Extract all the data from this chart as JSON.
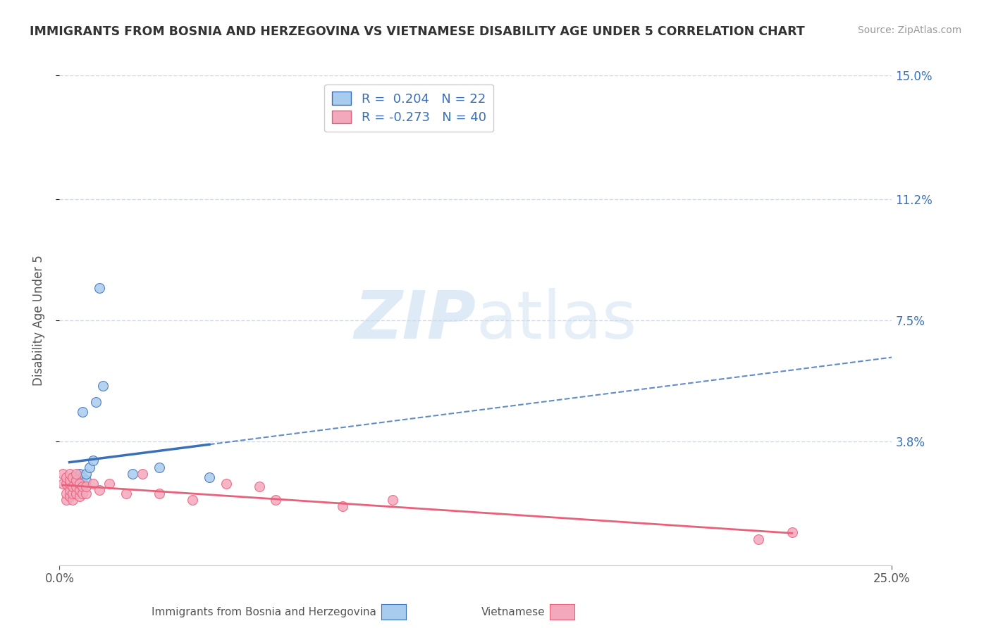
{
  "title": "IMMIGRANTS FROM BOSNIA AND HERZEGOVINA VS VIETNAMESE DISABILITY AGE UNDER 5 CORRELATION CHART",
  "source": "Source: ZipAtlas.com",
  "ylabel": "Disability Age Under 5",
  "xlim": [
    0.0,
    0.25
  ],
  "ylim": [
    0.0,
    0.15
  ],
  "yticks": [
    0.038,
    0.075,
    0.112,
    0.15
  ],
  "ytick_labels": [
    "3.8%",
    "7.5%",
    "11.2%",
    "15.0%"
  ],
  "xtick_labels": [
    "0.0%",
    "25.0%"
  ],
  "xtick_positions": [
    0.0,
    0.25
  ],
  "blue_R": 0.204,
  "blue_N": 22,
  "pink_R": -0.273,
  "pink_N": 40,
  "blue_color": "#A8CCEE",
  "pink_color": "#F4A8BC",
  "blue_line_color": "#3A70B8",
  "pink_line_color": "#E8607A",
  "watermark": "ZIPatlas",
  "watermark_color": "#D0E4F4",
  "background_color": "#FFFFFF",
  "blue_scatter_x": [
    0.003,
    0.004,
    0.004,
    0.005,
    0.005,
    0.005,
    0.006,
    0.006,
    0.006,
    0.007,
    0.007,
    0.007,
    0.008,
    0.008,
    0.009,
    0.01,
    0.011,
    0.012,
    0.013,
    0.022,
    0.03,
    0.045
  ],
  "blue_scatter_y": [
    0.022,
    0.024,
    0.026,
    0.023,
    0.025,
    0.027,
    0.024,
    0.026,
    0.028,
    0.025,
    0.047,
    0.027,
    0.026,
    0.028,
    0.03,
    0.032,
    0.05,
    0.085,
    0.055,
    0.028,
    0.03,
    0.027
  ],
  "pink_scatter_x": [
    0.001,
    0.001,
    0.002,
    0.002,
    0.002,
    0.002,
    0.003,
    0.003,
    0.003,
    0.003,
    0.003,
    0.004,
    0.004,
    0.004,
    0.004,
    0.005,
    0.005,
    0.005,
    0.005,
    0.006,
    0.006,
    0.006,
    0.007,
    0.007,
    0.008,
    0.008,
    0.01,
    0.012,
    0.015,
    0.02,
    0.025,
    0.03,
    0.04,
    0.05,
    0.06,
    0.065,
    0.085,
    0.1,
    0.21,
    0.22
  ],
  "pink_scatter_y": [
    0.025,
    0.028,
    0.02,
    0.022,
    0.025,
    0.027,
    0.021,
    0.023,
    0.025,
    0.026,
    0.028,
    0.02,
    0.022,
    0.024,
    0.027,
    0.022,
    0.024,
    0.026,
    0.028,
    0.021,
    0.023,
    0.025,
    0.022,
    0.024,
    0.022,
    0.024,
    0.025,
    0.023,
    0.025,
    0.022,
    0.028,
    0.022,
    0.02,
    0.025,
    0.024,
    0.02,
    0.018,
    0.02,
    0.008,
    0.01
  ],
  "legend_items": [
    {
      "label": "R =  0.204   N = 22",
      "color": "#A8CCEE",
      "edge": "#3A70B8"
    },
    {
      "label": "R = -0.273   N = 40",
      "color": "#F4A8BC",
      "edge": "#E8607A"
    }
  ],
  "bottom_legend": [
    {
      "label": "Immigrants from Bosnia and Herzegovina",
      "color": "#A8CCEE"
    },
    {
      "label": "Vietnamese",
      "color": "#F4A8BC"
    }
  ]
}
